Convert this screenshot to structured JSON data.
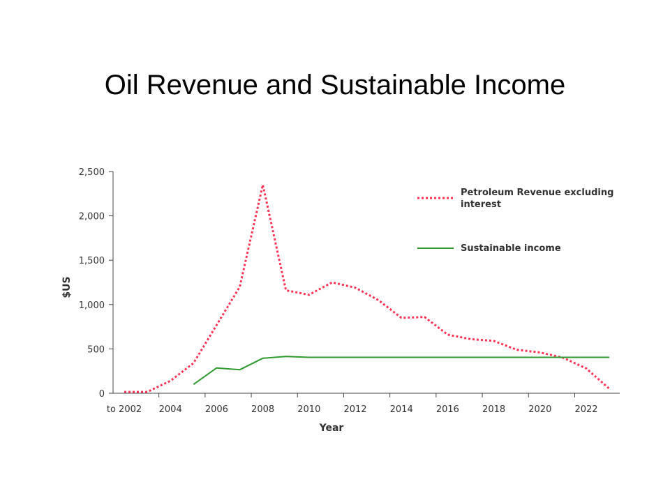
{
  "slide": {
    "title": "Oil Revenue and Sustainable Income"
  },
  "chart_data": {
    "type": "line",
    "title": "Oil Revenue and Sustainable Income",
    "xlabel": "Year",
    "ylabel": "$US",
    "xlim": [
      2002,
      2023
    ],
    "ylim": [
      0,
      2500
    ],
    "grid": false,
    "legend_position": "top-right",
    "x_tick_labels": [
      {
        "x": 2002,
        "label": "to 2002"
      },
      {
        "x": 2004,
        "label": "2004"
      },
      {
        "x": 2006,
        "label": "2006"
      },
      {
        "x": 2008,
        "label": "2008"
      },
      {
        "x": 2010,
        "label": "2010"
      },
      {
        "x": 2012,
        "label": "2012"
      },
      {
        "x": 2014,
        "label": "2014"
      },
      {
        "x": 2016,
        "label": "2016"
      },
      {
        "x": 2018,
        "label": "2018"
      },
      {
        "x": 2020,
        "label": "2020"
      },
      {
        "x": 2022,
        "label": "2022"
      }
    ],
    "y_tick_labels": [
      {
        "y": 2500,
        "label": "2,500"
      },
      {
        "y": 2000,
        "label": "2,000"
      },
      {
        "y": 1500,
        "label": "1,500"
      },
      {
        "y": 1000,
        "label": "1,000"
      },
      {
        "y": 500,
        "label": "500"
      },
      {
        "y": 0,
        "label": "0"
      }
    ],
    "series": [
      {
        "name": "Petroleum Revenue excluding interest",
        "legend_lines": [
          "Petroleum Revenue excluding",
          "interest"
        ],
        "color": "#ff3355",
        "style": "dotted",
        "points": [
          [
            2002,
            15
          ],
          [
            2003,
            15
          ],
          [
            2004,
            140
          ],
          [
            2005,
            340
          ],
          [
            2006,
            770
          ],
          [
            2007,
            1200
          ],
          [
            2008,
            2350
          ],
          [
            2009,
            1160
          ],
          [
            2010,
            1110
          ],
          [
            2011,
            1250
          ],
          [
            2012,
            1190
          ],
          [
            2013,
            1050
          ],
          [
            2014,
            850
          ],
          [
            2015,
            860
          ],
          [
            2016,
            660
          ],
          [
            2017,
            610
          ],
          [
            2018,
            590
          ],
          [
            2019,
            490
          ],
          [
            2020,
            460
          ],
          [
            2021,
            400
          ],
          [
            2022,
            280
          ],
          [
            2023,
            50
          ]
        ]
      },
      {
        "name": "Sustainable income",
        "legend_lines": [
          "Sustainable income"
        ],
        "color": "#2e9a2e",
        "style": "solid",
        "points": [
          [
            2005,
            100
          ],
          [
            2006,
            285
          ],
          [
            2007,
            265
          ],
          [
            2008,
            395
          ],
          [
            2009,
            415
          ],
          [
            2010,
            405
          ],
          [
            2011,
            405
          ],
          [
            2012,
            405
          ],
          [
            2013,
            405
          ],
          [
            2014,
            405
          ],
          [
            2015,
            405
          ],
          [
            2016,
            405
          ],
          [
            2017,
            405
          ],
          [
            2018,
            405
          ],
          [
            2019,
            405
          ],
          [
            2020,
            405
          ],
          [
            2021,
            405
          ],
          [
            2022,
            405
          ],
          [
            2023,
            405
          ]
        ]
      }
    ]
  }
}
